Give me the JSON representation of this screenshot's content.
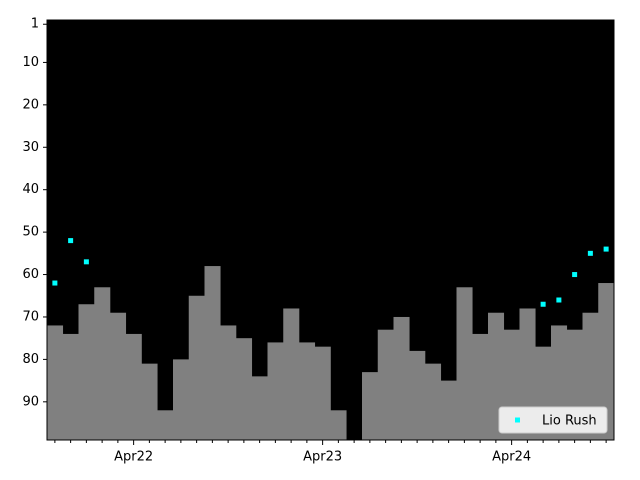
{
  "chart_data": {
    "type": "bar",
    "categories": [
      null,
      null,
      null,
      null,
      null,
      "Apr22",
      null,
      null,
      null,
      null,
      null,
      null,
      null,
      null,
      null,
      null,
      null,
      "Apr23",
      null,
      null,
      null,
      null,
      null,
      null,
      null,
      null,
      null,
      null,
      null,
      "Apr24",
      null,
      null,
      null,
      null,
      null,
      null
    ],
    "values": [
      72,
      74,
      67,
      63,
      69,
      74,
      81,
      92,
      80,
      65,
      58,
      72,
      75,
      84,
      76,
      68,
      76,
      77,
      92,
      null,
      83,
      73,
      70,
      78,
      81,
      85,
      63,
      74,
      69,
      73,
      68,
      77,
      72,
      73,
      69,
      62
    ],
    "color": "#808080",
    "background": "#000000",
    "series": [
      {
        "name": "Lio Rush",
        "color": "#00ffff",
        "type": "scatter",
        "values": [
          62,
          52,
          57,
          null,
          null,
          null,
          null,
          null,
          null,
          null,
          null,
          null,
          null,
          null,
          null,
          null,
          null,
          null,
          null,
          null,
          null,
          null,
          null,
          null,
          null,
          null,
          null,
          null,
          null,
          null,
          null,
          67,
          66,
          60,
          55,
          54
        ]
      }
    ],
    "ylim": [
      99,
      0
    ],
    "yticks": [
      1,
      10,
      20,
      30,
      40,
      50,
      60,
      70,
      80,
      90
    ],
    "legend": "lower right"
  }
}
